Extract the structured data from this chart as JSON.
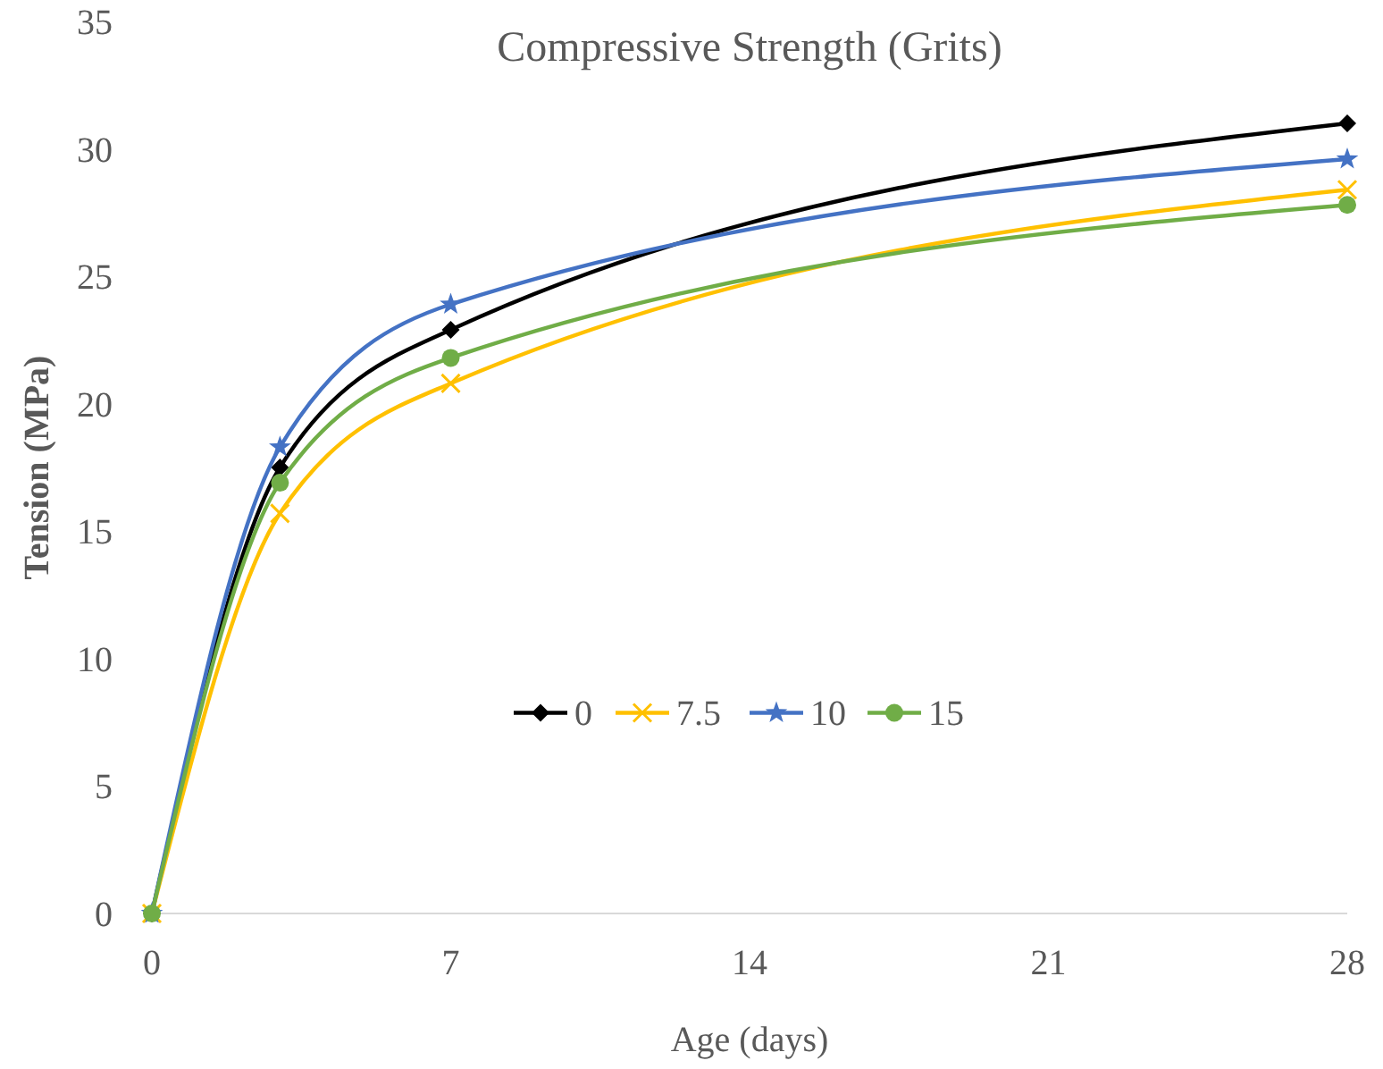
{
  "chart_data": {
    "type": "line",
    "title": "Compressive Strength (Grits)",
    "xlabel": "Age (days)",
    "ylabel": "Tension (MPa)",
    "x": [
      0,
      3,
      7,
      28
    ],
    "xlim": [
      0,
      28
    ],
    "xticks": [
      0,
      7,
      14,
      21,
      28
    ],
    "ylim": [
      0,
      35
    ],
    "yticks": [
      0,
      5,
      10,
      15,
      20,
      25,
      30,
      35
    ],
    "grid": false,
    "legend": "center",
    "line_style": "solid",
    "series": [
      {
        "name": "0",
        "color": "#000000",
        "marker": "diamond",
        "values": [
          0,
          17.5,
          22.9,
          31.0
        ]
      },
      {
        "name": "7.5",
        "color": "#ffc000",
        "marker": "cross",
        "values": [
          0,
          15.7,
          20.8,
          28.4
        ]
      },
      {
        "name": "10",
        "color": "#4472c4",
        "marker": "star",
        "values": [
          0,
          18.3,
          23.9,
          29.6
        ]
      },
      {
        "name": "15",
        "color": "#70ad47",
        "marker": "circle",
        "values": [
          0,
          16.9,
          21.8,
          27.8
        ]
      }
    ]
  }
}
